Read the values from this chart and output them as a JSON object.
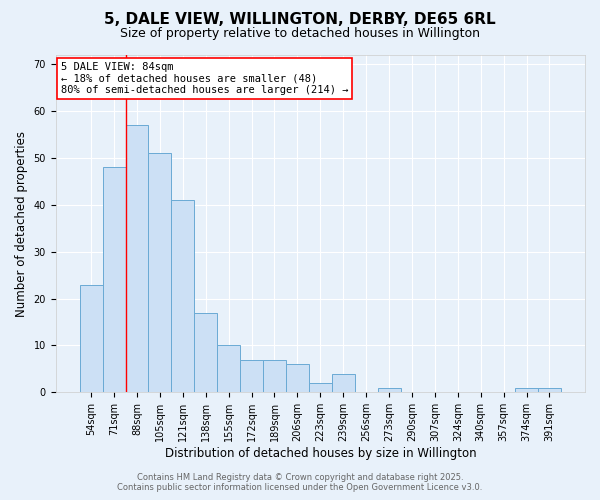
{
  "title1": "5, DALE VIEW, WILLINGTON, DERBY, DE65 6RL",
  "title2": "Size of property relative to detached houses in Willington",
  "xlabel": "Distribution of detached houses by size in Willington",
  "ylabel": "Number of detached properties",
  "categories": [
    "54sqm",
    "71sqm",
    "88sqm",
    "105sqm",
    "121sqm",
    "138sqm",
    "155sqm",
    "172sqm",
    "189sqm",
    "206sqm",
    "223sqm",
    "239sqm",
    "256sqm",
    "273sqm",
    "290sqm",
    "307sqm",
    "324sqm",
    "340sqm",
    "357sqm",
    "374sqm",
    "391sqm"
  ],
  "values": [
    23,
    48,
    57,
    51,
    41,
    17,
    10,
    7,
    7,
    6,
    2,
    4,
    0,
    1,
    0,
    0,
    0,
    0,
    0,
    1,
    1
  ],
  "bar_color": "#cce0f5",
  "bar_edge_color": "#6aaad4",
  "vline_x": 1.5,
  "vline_color": "red",
  "annotation_line1": "5 DALE VIEW: 84sqm",
  "annotation_line2": "← 18% of detached houses are smaller (48)",
  "annotation_line3": "80% of semi-detached houses are larger (214) →",
  "annotation_box_color": "white",
  "annotation_box_edge": "red",
  "ylim": [
    0,
    72
  ],
  "yticks": [
    0,
    10,
    20,
    30,
    40,
    50,
    60,
    70
  ],
  "footer1": "Contains HM Land Registry data © Crown copyright and database right 2025.",
  "footer2": "Contains public sector information licensed under the Open Government Licence v3.0.",
  "bg_color": "#e8f1fa",
  "plot_bg": "#e8f1fa",
  "grid_color": "white",
  "title_fontsize": 11,
  "subtitle_fontsize": 9,
  "tick_fontsize": 7,
  "label_fontsize": 8.5,
  "annotation_fontsize": 7.5
}
